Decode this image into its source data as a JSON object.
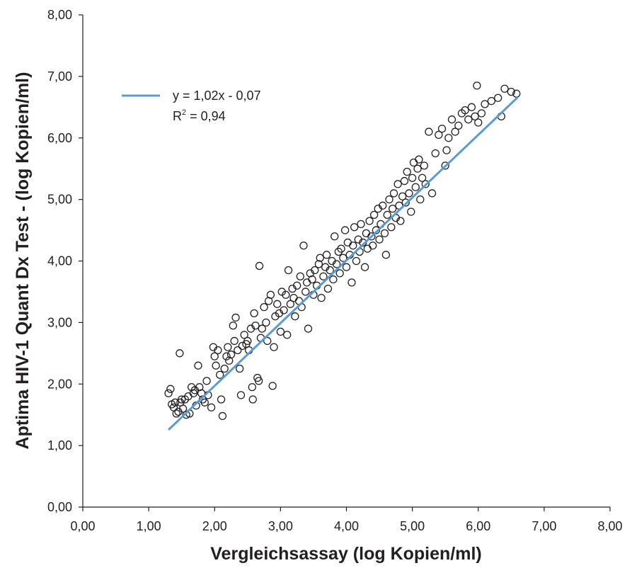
{
  "chart_data": {
    "type": "scatter",
    "xlabel": "Vergleichsassay (log Kopien/ml)",
    "ylabel": "Aptima HIV-1 Quant Dx Test - (log Kopien/ml)",
    "xlim": [
      0,
      8
    ],
    "ylim": [
      0,
      8
    ],
    "x_ticks": [
      "0,00",
      "1,00",
      "2,00",
      "3,00",
      "4,00",
      "5,00",
      "6,00",
      "7,00",
      "8,00"
    ],
    "y_ticks": [
      "0,00",
      "1,00",
      "2,00",
      "3,00",
      "4,00",
      "5,00",
      "6,00",
      "7,00",
      "8,00"
    ],
    "grid": false,
    "legend_position": "top-left",
    "trendline": {
      "label": "y = 1,02x - 0,07",
      "r2_prefix": "R",
      "r2_sup": "2",
      "r2_suffix": " = 0,94",
      "slope": 1.02,
      "intercept": -0.07,
      "x_range": [
        1.3,
        6.6
      ],
      "color": "#5b9bd5"
    },
    "marker_color": "#231f20",
    "points": [
      [
        1.3,
        1.85
      ],
      [
        1.33,
        1.92
      ],
      [
        1.35,
        1.67
      ],
      [
        1.38,
        1.62
      ],
      [
        1.4,
        1.7
      ],
      [
        1.42,
        1.52
      ],
      [
        1.45,
        1.55
      ],
      [
        1.47,
        2.5
      ],
      [
        1.48,
        1.7
      ],
      [
        1.5,
        1.75
      ],
      [
        1.52,
        1.6
      ],
      [
        1.55,
        1.75
      ],
      [
        1.57,
        1.5
      ],
      [
        1.6,
        1.8
      ],
      [
        1.62,
        1.52
      ],
      [
        1.65,
        1.95
      ],
      [
        1.68,
        1.85
      ],
      [
        1.7,
        1.9
      ],
      [
        1.72,
        1.65
      ],
      [
        1.75,
        2.3
      ],
      [
        1.77,
        1.95
      ],
      [
        1.8,
        1.85
      ],
      [
        1.82,
        1.75
      ],
      [
        1.85,
        1.7
      ],
      [
        1.88,
        2.05
      ],
      [
        1.9,
        1.82
      ],
      [
        1.95,
        1.62
      ],
      [
        1.98,
        2.6
      ],
      [
        2.0,
        2.45
      ],
      [
        2.02,
        2.3
      ],
      [
        2.05,
        2.55
      ],
      [
        2.08,
        2.15
      ],
      [
        2.1,
        1.75
      ],
      [
        2.12,
        1.48
      ],
      [
        2.15,
        2.25
      ],
      [
        2.18,
        2.45
      ],
      [
        2.2,
        2.6
      ],
      [
        2.22,
        2.38
      ],
      [
        2.25,
        2.48
      ],
      [
        2.28,
        2.95
      ],
      [
        2.3,
        2.7
      ],
      [
        2.32,
        3.08
      ],
      [
        2.35,
        2.55
      ],
      [
        2.38,
        2.25
      ],
      [
        2.4,
        1.82
      ],
      [
        2.42,
        2.62
      ],
      [
        2.45,
        2.8
      ],
      [
        2.48,
        2.65
      ],
      [
        2.5,
        2.7
      ],
      [
        2.52,
        2.55
      ],
      [
        2.55,
        2.9
      ],
      [
        2.57,
        1.95
      ],
      [
        2.58,
        1.75
      ],
      [
        2.6,
        3.15
      ],
      [
        2.62,
        2.95
      ],
      [
        2.65,
        2.1
      ],
      [
        2.67,
        2.05
      ],
      [
        2.68,
        3.92
      ],
      [
        2.7,
        2.75
      ],
      [
        2.72,
        2.9
      ],
      [
        2.75,
        3.25
      ],
      [
        2.78,
        3.0
      ],
      [
        2.8,
        2.7
      ],
      [
        2.82,
        3.35
      ],
      [
        2.85,
        3.45
      ],
      [
        2.88,
        1.97
      ],
      [
        2.9,
        2.6
      ],
      [
        2.92,
        3.1
      ],
      [
        2.95,
        3.3
      ],
      [
        2.98,
        3.15
      ],
      [
        3.0,
        2.85
      ],
      [
        3.02,
        3.5
      ],
      [
        3.05,
        3.2
      ],
      [
        3.08,
        3.45
      ],
      [
        3.1,
        2.8
      ],
      [
        3.12,
        3.85
      ],
      [
        3.15,
        3.3
      ],
      [
        3.18,
        3.55
      ],
      [
        3.2,
        3.4
      ],
      [
        3.22,
        3.1
      ],
      [
        3.25,
        3.6
      ],
      [
        3.28,
        3.35
      ],
      [
        3.3,
        3.75
      ],
      [
        3.32,
        3.25
      ],
      [
        3.35,
        4.25
      ],
      [
        3.38,
        3.5
      ],
      [
        3.4,
        3.65
      ],
      [
        3.42,
        2.9
      ],
      [
        3.45,
        3.8
      ],
      [
        3.48,
        3.7
      ],
      [
        3.5,
        3.45
      ],
      [
        3.52,
        3.85
      ],
      [
        3.55,
        3.6
      ],
      [
        3.58,
        3.95
      ],
      [
        3.6,
        4.05
      ],
      [
        3.62,
        3.4
      ],
      [
        3.65,
        3.75
      ],
      [
        3.68,
        3.9
      ],
      [
        3.7,
        4.1
      ],
      [
        3.72,
        3.55
      ],
      [
        3.75,
        3.85
      ],
      [
        3.78,
        4.0
      ],
      [
        3.8,
        3.7
      ],
      [
        3.82,
        4.4
      ],
      [
        3.85,
        3.95
      ],
      [
        3.88,
        4.15
      ],
      [
        3.9,
        3.8
      ],
      [
        3.92,
        4.2
      ],
      [
        3.95,
        4.05
      ],
      [
        3.98,
        4.5
      ],
      [
        4.0,
        3.9
      ],
      [
        4.02,
        4.3
      ],
      [
        4.05,
        4.1
      ],
      [
        4.08,
        3.65
      ],
      [
        4.1,
        4.25
      ],
      [
        4.12,
        4.55
      ],
      [
        4.15,
        4.0
      ],
      [
        4.18,
        4.35
      ],
      [
        4.2,
        4.15
      ],
      [
        4.22,
        4.6
      ],
      [
        4.25,
        4.3
      ],
      [
        4.28,
        3.9
      ],
      [
        4.3,
        4.45
      ],
      [
        4.32,
        4.2
      ],
      [
        4.35,
        4.65
      ],
      [
        4.38,
        4.4
      ],
      [
        4.4,
        4.25
      ],
      [
        4.42,
        4.75
      ],
      [
        4.45,
        4.5
      ],
      [
        4.48,
        4.85
      ],
      [
        4.5,
        4.35
      ],
      [
        4.52,
        4.6
      ],
      [
        4.55,
        4.9
      ],
      [
        4.58,
        4.45
      ],
      [
        4.6,
        4.1
      ],
      [
        4.62,
        4.75
      ],
      [
        4.65,
        5.0
      ],
      [
        4.68,
        4.55
      ],
      [
        4.7,
        4.85
      ],
      [
        4.72,
        5.1
      ],
      [
        4.75,
        4.7
      ],
      [
        4.78,
        5.25
      ],
      [
        4.8,
        4.9
      ],
      [
        4.82,
        4.65
      ],
      [
        4.85,
        5.05
      ],
      [
        4.88,
        5.3
      ],
      [
        4.9,
        4.95
      ],
      [
        4.92,
        5.45
      ],
      [
        4.95,
        5.1
      ],
      [
        4.98,
        4.8
      ],
      [
        5.0,
        5.35
      ],
      [
        5.02,
        5.6
      ],
      [
        5.05,
        5.2
      ],
      [
        5.08,
        5.5
      ],
      [
        5.1,
        5.65
      ],
      [
        5.12,
        5.0
      ],
      [
        5.15,
        5.35
      ],
      [
        5.18,
        5.55
      ],
      [
        5.2,
        5.25
      ],
      [
        5.25,
        6.1
      ],
      [
        5.3,
        5.1
      ],
      [
        5.35,
        5.75
      ],
      [
        5.4,
        6.05
      ],
      [
        5.45,
        6.15
      ],
      [
        5.5,
        5.55
      ],
      [
        5.52,
        5.8
      ],
      [
        5.55,
        6.0
      ],
      [
        5.6,
        6.3
      ],
      [
        5.65,
        6.1
      ],
      [
        5.7,
        6.2
      ],
      [
        5.75,
        6.4
      ],
      [
        5.8,
        6.45
      ],
      [
        5.85,
        6.3
      ],
      [
        5.9,
        6.5
      ],
      [
        5.95,
        6.35
      ],
      [
        5.98,
        6.85
      ],
      [
        6.0,
        6.25
      ],
      [
        6.05,
        6.4
      ],
      [
        6.1,
        6.55
      ],
      [
        6.2,
        6.6
      ],
      [
        6.3,
        6.65
      ],
      [
        6.35,
        6.35
      ],
      [
        6.4,
        6.8
      ],
      [
        6.5,
        6.75
      ],
      [
        6.58,
        6.72
      ]
    ]
  }
}
